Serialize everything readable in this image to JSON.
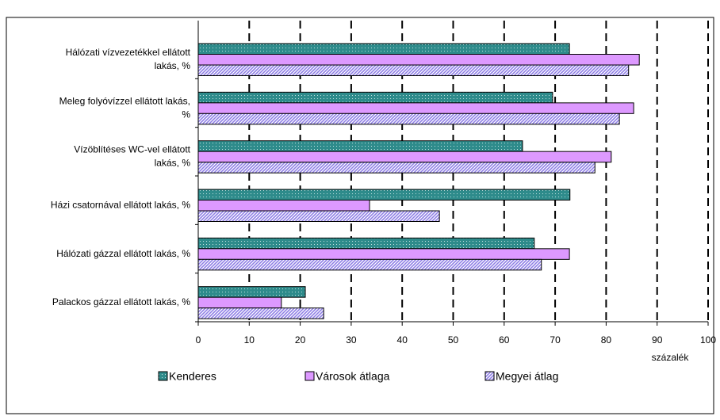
{
  "chart_data": {
    "type": "bar",
    "orientation": "horizontal",
    "categories": [
      [
        "Hálózati vízvezetékkel ellátott",
        "lakás, %"
      ],
      [
        "Meleg folyóvízzel ellátott lakás,",
        "%"
      ],
      [
        "Vízöblítéses WC-vel ellátott",
        "lakás, %"
      ],
      [
        "Házi csatornával ellátott lakás, %"
      ],
      [
        "Hálózati gázzal ellátott lakás, %"
      ],
      [
        "Palackos gázzal ellátott lakás, %"
      ]
    ],
    "series": [
      {
        "name": "Kenderes",
        "color": "#2e8b8b",
        "values": [
          72.8,
          69.5,
          63.6,
          72.9,
          65.9,
          21
        ]
      },
      {
        "name": "Városok átlaga",
        "color": "#dd99ff",
        "values": [
          86.5,
          85.4,
          81,
          33.6,
          72.8,
          16.3
        ]
      },
      {
        "name": "Megyei átlag",
        "color": "#8f7fe6",
        "values": [
          84.4,
          82.6,
          77.8,
          47.3,
          67.3,
          24.6
        ]
      }
    ],
    "xlim": [
      0,
      100
    ],
    "xticks": [
      0,
      10,
      20,
      30,
      40,
      50,
      60,
      70,
      80,
      90,
      100
    ],
    "xlabel": "százalék",
    "grid": true
  }
}
